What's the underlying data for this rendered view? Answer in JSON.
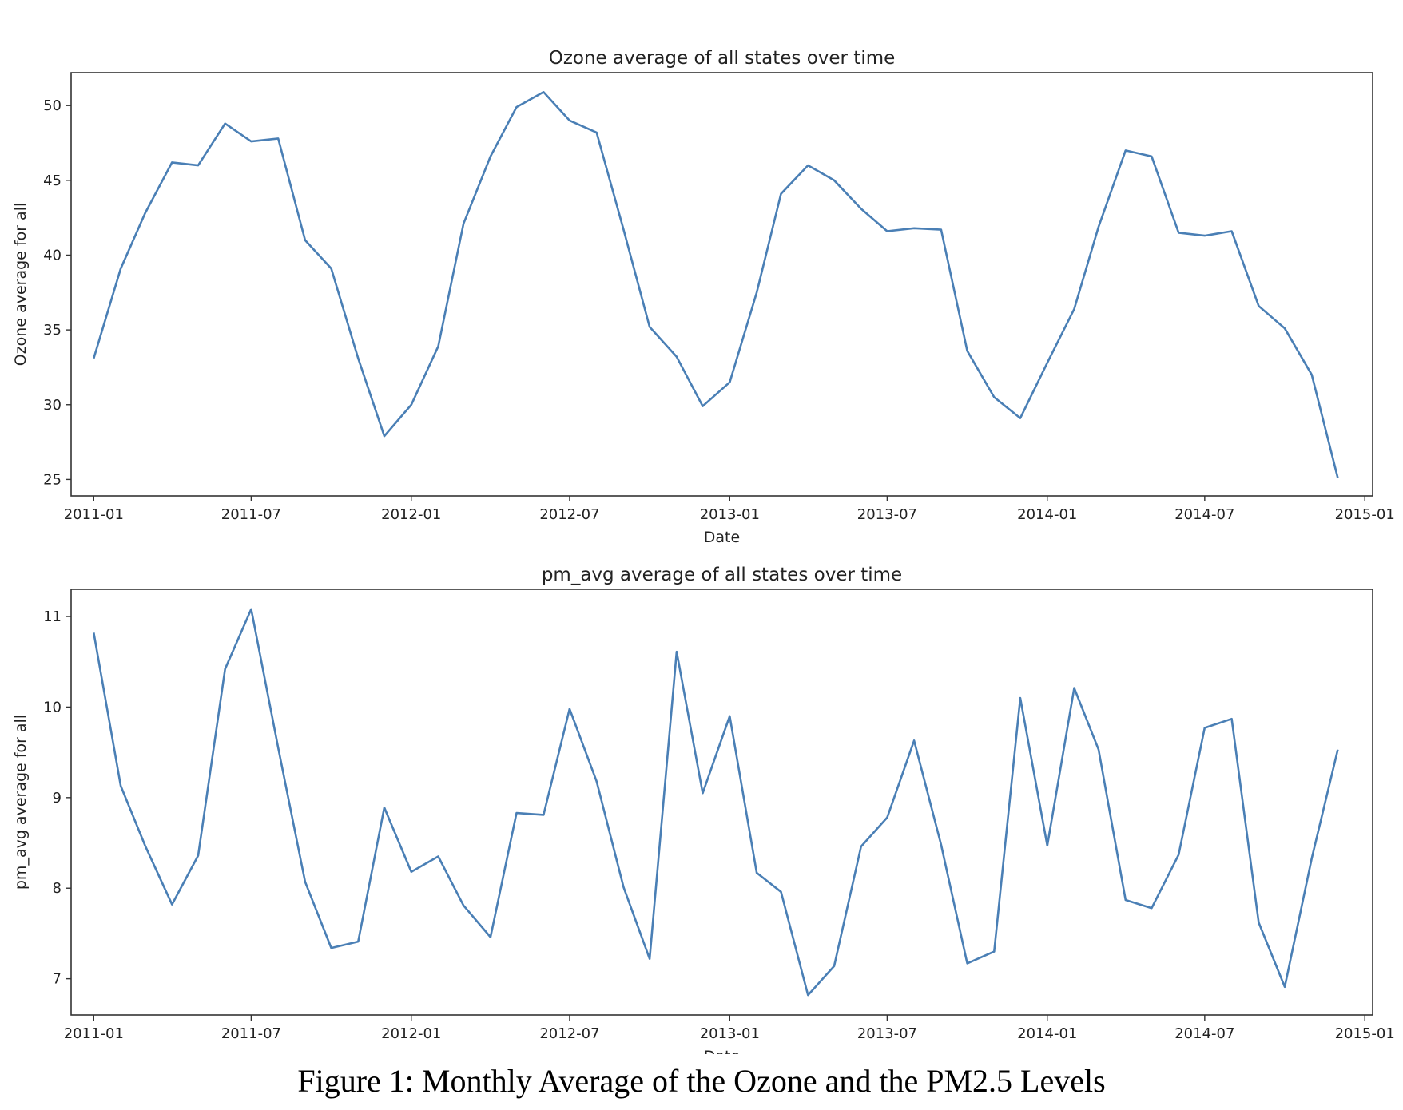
{
  "caption": "Figure 1: Monthly Average of the Ozone and the PM2.5 Levels",
  "colors": {
    "line": "#4a7fb5",
    "axes": "#333333"
  },
  "chart_data": [
    {
      "type": "line",
      "title": "Ozone average of all states over time",
      "xlabel": "Date",
      "ylabel": "Ozone average for all",
      "xlim": [
        "2010-12-06",
        "2015-01-10"
      ],
      "ylim": [
        23.9,
        52.2
      ],
      "yticks": [
        25,
        30,
        35,
        40,
        45,
        50
      ],
      "xticks": [
        "2011-01",
        "2011-07",
        "2012-01",
        "2012-07",
        "2013-01",
        "2013-07",
        "2014-01",
        "2014-07",
        "2015-01"
      ],
      "grid": false,
      "x": [
        "2011-01-01",
        "2011-02-01",
        "2011-03-01",
        "2011-04-01",
        "2011-05-01",
        "2011-06-01",
        "2011-07-01",
        "2011-08-01",
        "2011-09-01",
        "2011-10-01",
        "2011-11-01",
        "2011-12-01",
        "2012-01-01",
        "2012-02-01",
        "2012-03-01",
        "2012-04-01",
        "2012-05-01",
        "2012-06-01",
        "2012-07-01",
        "2012-08-01",
        "2012-09-01",
        "2012-10-01",
        "2012-11-01",
        "2012-12-01",
        "2013-01-01",
        "2013-02-01",
        "2013-03-01",
        "2013-04-01",
        "2013-05-01",
        "2013-06-01",
        "2013-07-01",
        "2013-08-01",
        "2013-09-01",
        "2013-10-01",
        "2013-11-01",
        "2013-12-01",
        "2014-01-01",
        "2014-02-01",
        "2014-03-01",
        "2014-04-01",
        "2014-05-01",
        "2014-06-01",
        "2014-07-01",
        "2014-08-01",
        "2014-09-01",
        "2014-10-01",
        "2014-11-01",
        "2014-12-01"
      ],
      "series": [
        {
          "values": [
            33.1,
            39.1,
            42.8,
            46.2,
            46.0,
            48.8,
            47.6,
            47.8,
            41.0,
            39.1,
            33.1,
            27.9,
            30.0,
            33.9,
            42.1,
            46.6,
            49.9,
            50.9,
            49.0,
            48.2,
            41.7,
            35.2,
            33.2,
            29.9,
            31.5,
            37.5,
            44.1,
            46.0,
            45.0,
            43.1,
            41.6,
            41.8,
            41.7,
            33.6,
            30.5,
            29.1,
            32.8,
            36.4,
            41.9,
            47.0,
            46.6,
            41.5,
            41.3,
            41.6,
            36.6,
            35.1,
            32.0,
            25.1
          ]
        }
      ]
    },
    {
      "type": "line",
      "title": "pm_avg average of all states over time",
      "xlabel": "Date",
      "ylabel": "pm_avg average for all",
      "xlim": [
        "2010-12-06",
        "2015-01-10"
      ],
      "ylim": [
        6.6,
        11.3
      ],
      "yticks": [
        7,
        8,
        9,
        10,
        11
      ],
      "xticks": [
        "2011-01",
        "2011-07",
        "2012-01",
        "2012-07",
        "2013-01",
        "2013-07",
        "2014-01",
        "2014-07",
        "2015-01"
      ],
      "grid": false,
      "x": [
        "2011-01-01",
        "2011-02-01",
        "2011-03-01",
        "2011-04-01",
        "2011-05-01",
        "2011-06-01",
        "2011-07-01",
        "2011-08-01",
        "2011-09-01",
        "2011-10-01",
        "2011-11-01",
        "2011-12-01",
        "2012-01-01",
        "2012-02-01",
        "2012-03-01",
        "2012-04-01",
        "2012-05-01",
        "2012-06-01",
        "2012-07-01",
        "2012-08-01",
        "2012-09-01",
        "2012-10-01",
        "2012-11-01",
        "2012-12-01",
        "2013-01-01",
        "2013-02-01",
        "2013-03-01",
        "2013-04-01",
        "2013-05-01",
        "2013-06-01",
        "2013-07-01",
        "2013-08-01",
        "2013-09-01",
        "2013-10-01",
        "2013-11-01",
        "2013-12-01",
        "2014-01-01",
        "2014-02-01",
        "2014-03-01",
        "2014-04-01",
        "2014-05-01",
        "2014-06-01",
        "2014-07-01",
        "2014-08-01",
        "2014-09-01",
        "2014-10-01",
        "2014-11-01",
        "2014-12-01"
      ],
      "series": [
        {
          "values": [
            10.82,
            9.13,
            8.47,
            7.82,
            8.36,
            10.42,
            11.08,
            9.55,
            8.07,
            7.34,
            7.41,
            8.89,
            8.18,
            8.35,
            7.81,
            7.46,
            8.83,
            8.81,
            9.98,
            9.18,
            8.01,
            7.22,
            10.61,
            9.05,
            9.9,
            8.17,
            7.96,
            6.82,
            7.14,
            8.46,
            8.78,
            9.63,
            8.48,
            7.17,
            7.3,
            10.1,
            8.47,
            10.21,
            9.53,
            7.87,
            7.78,
            8.37,
            9.77,
            9.87,
            7.62,
            6.91,
            8.33,
            9.53
          ]
        }
      ]
    }
  ]
}
